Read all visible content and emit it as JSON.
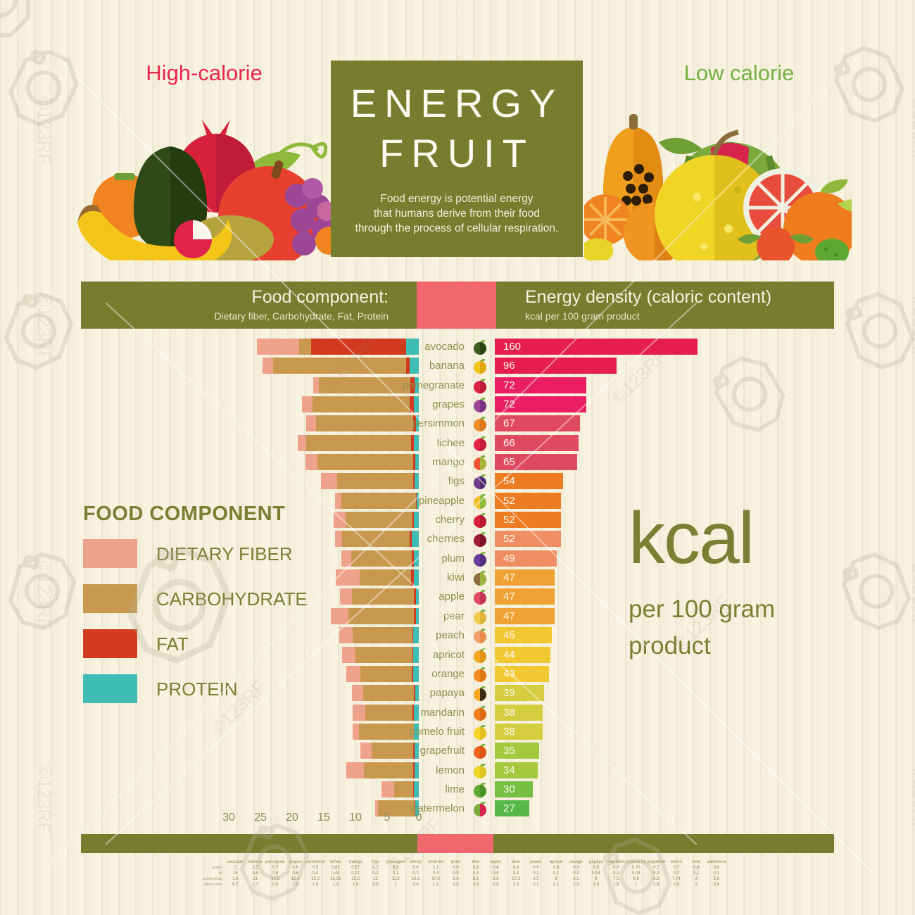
{
  "watermark": {
    "label": "©123RF",
    "brand": "123RF"
  },
  "header_top": {
    "high_calorie": "High-calorie",
    "low_calorie": "Low calorie",
    "title_line1": "ENERGY",
    "title_line2": "FRUIT",
    "subtitle_lines": [
      "Food energy is potential energy",
      "that humans derive from their food",
      "through the process of cellular respiration."
    ]
  },
  "band": {
    "left_title": "Food component:",
    "left_subtitle": "Dietary fiber, Carbohydrate, Fat, Protein",
    "right_title": "Energy density (caloric content)",
    "right_subtitle": "kcal per 100 gram product"
  },
  "legend": {
    "title": "FOOD COMPONENT",
    "items": [
      {
        "label": "DIETARY FIBER",
        "color": "#efa28b"
      },
      {
        "label": "CARBOHYDRATE",
        "color": "#c9984f"
      },
      {
        "label": "FAT",
        "color": "#d13a1e"
      },
      {
        "label": "PROTEIN",
        "color": "#3fbdb4"
      }
    ]
  },
  "kcal_note": {
    "big": "kcal",
    "line1": "per 100 gram",
    "line2": "product"
  },
  "axis": {
    "ticks": [
      30,
      25,
      20,
      15,
      10,
      5,
      0
    ]
  },
  "table": {
    "row_labels": [
      "protein",
      "fat",
      "carbohydrate",
      "dietary fiber"
    ]
  },
  "chart_data": {
    "type": "bar",
    "title": "Energy fruit",
    "left_axis": {
      "unit": "gram per 100 g",
      "range": [
        0,
        30
      ],
      "ticks": [
        30,
        25,
        20,
        15,
        10,
        5,
        0
      ]
    },
    "right_axis": {
      "unit": "kcal per 100 g",
      "max_shown": 160
    },
    "component_order_left_bar": [
      "dietary_fiber",
      "carbohydrate",
      "fat",
      "protein"
    ],
    "fruits": [
      {
        "name": "avocado",
        "kcal": 160,
        "bar_color": "#e51e4b",
        "icon": {
          "name": "avocado-icon",
          "c1": "#3c5a1e",
          "c2": "#2a4413"
        },
        "protein": 2,
        "fat": 15,
        "carbohydrate": 1.9,
        "dietary_fiber": 6.7
      },
      {
        "name": "banana",
        "kcal": 96,
        "bar_color": "#e51e4b",
        "icon": {
          "name": "banana-icon",
          "c1": "#f2c518",
          "c2": "#e0a810"
        },
        "protein": 1.5,
        "fat": 0.5,
        "carbohydrate": 21,
        "dietary_fiber": 1.7
      },
      {
        "name": "pomegranate",
        "kcal": 72,
        "bar_color": "#e91e63",
        "icon": {
          "name": "pomegranate-icon",
          "c1": "#dc2344",
          "c2": "#c01b38"
        },
        "protein": 0.7,
        "fat": 0.6,
        "carbohydrate": 14.5,
        "dietary_fiber": 0.9
      },
      {
        "name": "grapes",
        "kcal": 72,
        "bar_color": "#e91e63",
        "icon": {
          "name": "grapes-icon",
          "c1": "#9c4796",
          "c2": "#7c3585"
        },
        "protein": 0.8,
        "fat": 0.6,
        "carbohydrate": 15.4,
        "dietary_fiber": 1.6
      },
      {
        "name": "persimmon",
        "kcal": 67,
        "bar_color": "#df4a60",
        "icon": {
          "name": "persimmon-icon",
          "c1": "#f08c2a",
          "c2": "#dd7a1c"
        },
        "protein": 0.5,
        "fat": 0.4,
        "carbohydrate": 15.3,
        "dietary_fiber": 1.6
      },
      {
        "name": "lichee",
        "kcal": 66,
        "bar_color": "#df4a60",
        "icon": {
          "name": "lichee-icon",
          "c1": "#e22549",
          "c2": "#c81d3d"
        },
        "protein": 0.83,
        "fat": 0.44,
        "carbohydrate": 16.53,
        "dietary_fiber": 1.3
      },
      {
        "name": "mango",
        "kcal": 65,
        "bar_color": "#df4a60",
        "icon": {
          "name": "mango-icon",
          "c1": "#e8542e",
          "c2": "#a8b43c"
        },
        "protein": 0.57,
        "fat": 0.27,
        "carbohydrate": 15.2,
        "dietary_fiber": 1.8
      },
      {
        "name": "figs",
        "kcal": 54,
        "bar_color": "#ee7c23",
        "icon": {
          "name": "figs-icon",
          "c1": "#6d3a8c",
          "c2": "#542a70"
        },
        "protein": 0.7,
        "fat": 0.2,
        "carbohydrate": 12,
        "dietary_fiber": 2.5
      },
      {
        "name": "pineapple",
        "kcal": 52,
        "bar_color": "#ee7c23",
        "icon": {
          "name": "pineapple-icon",
          "c1": "#eec02a",
          "c2": "#8fb93b"
        },
        "protein": 0.3,
        "fat": 0.1,
        "carbohydrate": 11.8,
        "dietary_fiber": 1
      },
      {
        "name": "cherry",
        "kcal": 52,
        "bar_color": "#ee7c23",
        "icon": {
          "name": "cherry-icon",
          "c1": "#d8203c",
          "c2": "#b81830"
        },
        "protein": 0.8,
        "fat": 0.2,
        "carbohydrate": 10.6,
        "dietary_fiber": 1.8
      },
      {
        "name": "cherries",
        "kcal": 52,
        "bar_color": "#ef8e62",
        "icon": {
          "name": "cherries-icon",
          "c1": "#a01b34",
          "c2": "#7e1226"
        },
        "protein": 1.1,
        "fat": 0.4,
        "carbohydrate": 10.6,
        "dietary_fiber": 1.1
      },
      {
        "name": "plum",
        "kcal": 49,
        "bar_color": "#ef8e62",
        "icon": {
          "name": "plum-icon",
          "c1": "#6a3d9e",
          "c2": "#533080"
        },
        "protein": 0.8,
        "fat": 0.3,
        "carbohydrate": 9.6,
        "dietary_fiber": 1.5
      },
      {
        "name": "kiwi",
        "kcal": 47,
        "bar_color": "#efa233",
        "icon": {
          "name": "kiwi-icon",
          "c1": "#8a6d3b",
          "c2": "#9cb23c"
        },
        "protein": 0.8,
        "fat": 0.4,
        "carbohydrate": 8.1,
        "dietary_fiber": 3.8
      },
      {
        "name": "apple",
        "kcal": 47,
        "bar_color": "#efa233",
        "icon": {
          "name": "apple-icon",
          "c1": "#e04b63",
          "c2": "#c23850"
        },
        "protein": 0.4,
        "fat": 0.4,
        "carbohydrate": 9.8,
        "dietary_fiber": 1.8
      },
      {
        "name": "pear",
        "kcal": 47,
        "bar_color": "#efa233",
        "icon": {
          "name": "pear-icon",
          "c1": "#f2c94c",
          "c2": "#dfb43a"
        },
        "protein": 0.4,
        "fat": 0.4,
        "carbohydrate": 10.3,
        "dietary_fiber": 2.8
      },
      {
        "name": "peach",
        "kcal": 45,
        "bar_color": "#f2c832",
        "icon": {
          "name": "peach-icon",
          "c1": "#f4a06a",
          "c2": "#e88c52"
        },
        "protein": 0.9,
        "fat": 0.1,
        "carbohydrate": 9.5,
        "dietary_fiber": 2.1
      },
      {
        "name": "apricot",
        "kcal": 44,
        "bar_color": "#f2c832",
        "icon": {
          "name": "apricot-icon",
          "c1": "#f5a623",
          "c2": "#e2931a"
        },
        "protein": 0.9,
        "fat": 0.1,
        "carbohydrate": 9,
        "dietary_fiber": 2.1
      },
      {
        "name": "orange",
        "kcal": 43,
        "bar_color": "#f2c832",
        "icon": {
          "name": "orange-icon",
          "c1": "#f28c1e",
          "c2": "#de7a14"
        },
        "protein": 0.9,
        "fat": 0.2,
        "carbohydrate": 8.1,
        "dietary_fiber": 2.2
      },
      {
        "name": "papaya",
        "kcal": 39,
        "bar_color": "#d4cd3f",
        "icon": {
          "name": "papaya-icon",
          "c1": "#f5a623",
          "c2": "#3c2a10"
        },
        "protein": 0.6,
        "fat": 0.14,
        "carbohydrate": 8,
        "dietary_fiber": 1.8
      },
      {
        "name": "mandarin",
        "kcal": 38,
        "bar_color": "#d4cd3f",
        "icon": {
          "name": "mandarin-icon",
          "c1": "#f07d1e",
          "c2": "#dd6c14"
        },
        "protein": 0.8,
        "fat": 0.2,
        "carbohydrate": 7.5,
        "dietary_fiber": 1.9
      },
      {
        "name": "pomelo fruit",
        "kcal": 38,
        "bar_color": "#d4cd3f",
        "icon": {
          "name": "pomelo-icon",
          "c1": "#f5d327",
          "c2": "#e2c01c"
        },
        "protein": 0.76,
        "fat": 0.04,
        "carbohydrate": 8.6,
        "dietary_fiber": 1
      },
      {
        "name": "grapefruit",
        "kcal": 35,
        "bar_color": "#a4c93e",
        "icon": {
          "name": "grapefruit-icon",
          "c1": "#f0641e",
          "c2": "#dd5414"
        },
        "protein": 0.7,
        "fat": 0.2,
        "carbohydrate": 6.5,
        "dietary_fiber": 1.8
      },
      {
        "name": "lemon",
        "kcal": 34,
        "bar_color": "#a4c93e",
        "icon": {
          "name": "lemon-icon",
          "c1": "#f0d527",
          "c2": "#ddc31c"
        },
        "protein": 0.7,
        "fat": 0.2,
        "carbohydrate": 7.74,
        "dietary_fiber": 2.8
      },
      {
        "name": "lime",
        "kcal": 30,
        "bar_color": "#74bf44",
        "icon": {
          "name": "lime-icon",
          "c1": "#5ca832",
          "c2": "#4a9426"
        },
        "protein": 0.8,
        "fat": 0.1,
        "carbohydrate": 3,
        "dietary_fiber": 2
      },
      {
        "name": "watermelon",
        "kcal": 27,
        "bar_color": "#55b848",
        "icon": {
          "name": "watermelon-icon",
          "c1": "#7ca83c",
          "c2": "#d8244c"
        },
        "protein": 0.6,
        "fat": 0.1,
        "carbohydrate": 5.8,
        "dietary_fiber": 0.4
      }
    ]
  }
}
